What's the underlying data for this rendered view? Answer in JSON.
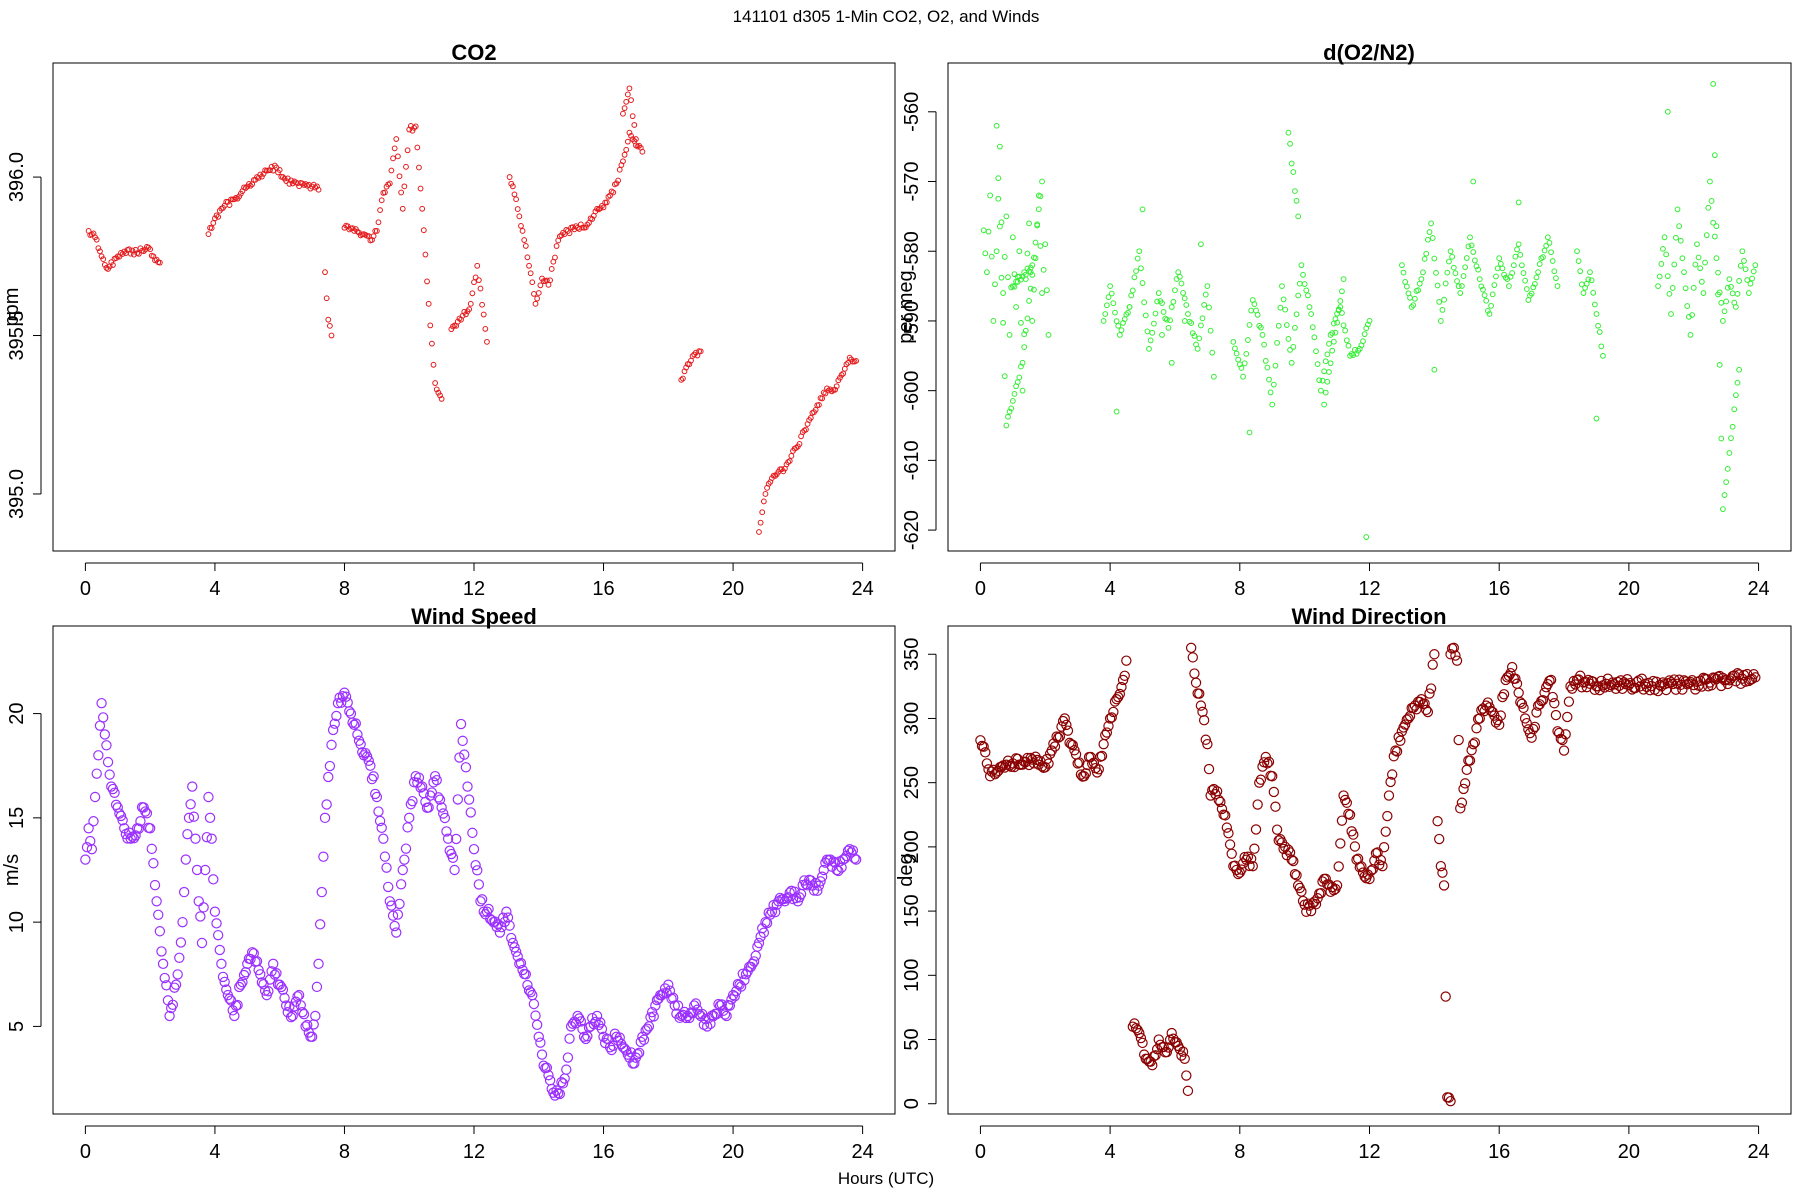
{
  "figure": {
    "title": "141101   d305   1-Min CO2, O2, and Winds",
    "xlabel": "Hours (UTC)"
  },
  "chart_data": [
    {
      "type": "scatter",
      "title": "CO2",
      "xlabel": "",
      "ylabel": "ppm",
      "xlim": [
        -1,
        25
      ],
      "ylim": [
        394.82,
        396.36
      ],
      "xticks": [
        "0",
        "4",
        "8",
        "12",
        "16",
        "20",
        "24"
      ],
      "yticks": [
        "395.0",
        "395.5",
        "396.0"
      ],
      "color": "#e41a1c",
      "marker_size": "small",
      "series": [
        {
          "x": [
            0.1,
            0.3,
            0.5,
            0.7,
            1.0,
            1.3,
            1.6,
            1.9,
            2.1,
            2.3
          ],
          "y": [
            395.83,
            395.81,
            395.75,
            395.71,
            395.75,
            395.77,
            395.76,
            395.78,
            395.75,
            395.73
          ]
        },
        {
          "x": [
            3.8,
            4.0,
            4.3,
            4.6,
            5.0,
            5.3,
            5.6,
            5.9,
            6.1,
            6.4,
            6.7,
            7.0,
            7.2
          ],
          "y": [
            395.82,
            395.87,
            395.91,
            395.93,
            395.97,
            396.0,
            396.02,
            396.03,
            396.0,
            395.98,
            395.98,
            395.97,
            395.96
          ]
        },
        {
          "x": [
            7.4,
            7.5,
            7.6
          ],
          "y": [
            395.7,
            395.55,
            395.5
          ]
        },
        {
          "x": [
            8.0,
            8.3,
            8.6,
            8.8,
            9.0,
            9.2,
            9.4,
            9.6,
            9.8,
            10.0,
            10.2,
            10.4,
            10.6,
            10.8,
            11.0
          ],
          "y": [
            395.84,
            395.83,
            395.82,
            395.8,
            395.83,
            395.95,
            395.98,
            396.12,
            395.9,
            396.15,
            396.16,
            395.9,
            395.6,
            395.35,
            395.3
          ]
        },
        {
          "x": [
            11.3,
            11.6,
            11.9,
            12.1,
            12.4
          ],
          "y": [
            395.52,
            395.55,
            395.6,
            395.72,
            395.48
          ]
        },
        {
          "x": [
            13.1,
            13.3,
            13.5,
            13.7,
            13.9,
            14.1,
            14.3,
            14.6,
            14.9,
            15.2,
            15.5,
            15.8,
            16.1,
            16.4,
            16.6,
            16.8,
            17.0,
            17.2
          ],
          "y": [
            396.0,
            395.93,
            395.83,
            395.72,
            395.6,
            395.68,
            395.66,
            395.8,
            395.83,
            395.84,
            395.85,
            395.9,
            395.92,
            395.98,
            396.05,
            396.14,
            396.1,
            396.08
          ]
        },
        {
          "x": [
            16.6,
            16.8,
            17.0
          ],
          "y": [
            396.2,
            396.28,
            396.12
          ]
        },
        {
          "x": [
            18.4,
            18.6,
            18.8,
            19.0
          ],
          "y": [
            395.36,
            395.41,
            395.44,
            395.45
          ]
        },
        {
          "x": [
            20.8,
            21.0,
            21.2,
            21.4,
            21.6,
            21.8,
            22.0,
            22.2,
            22.4,
            22.6,
            22.8,
            23.0,
            23.2,
            23.4,
            23.6,
            23.8
          ],
          "y": [
            394.88,
            395.0,
            395.05,
            395.07,
            395.08,
            395.12,
            395.15,
            395.2,
            395.24,
            395.28,
            395.32,
            395.33,
            395.34,
            395.38,
            395.43,
            395.42
          ]
        }
      ]
    },
    {
      "type": "scatter",
      "title": "d(O2/N2)",
      "xlabel": "",
      "ylabel": "per meg",
      "xlim": [
        -1,
        25
      ],
      "ylim": [
        -623,
        -553
      ],
      "xticks": [
        "0",
        "4",
        "8",
        "12",
        "16",
        "20",
        "24"
      ],
      "yticks": [
        "-620",
        "-610",
        "-600",
        "-590",
        "-580",
        "-570",
        "-560"
      ],
      "color": "#33ee33",
      "marker_size": "small",
      "series": [
        {
          "x": [
            0.1,
            0.2,
            0.3,
            0.4,
            0.5,
            0.6,
            0.7,
            0.8,
            0.9,
            1.0,
            1.1,
            1.2,
            1.3,
            1.4,
            1.5,
            1.6,
            1.7,
            1.8,
            1.9,
            2.0,
            2.1,
            0.5,
            0.8,
            1.3,
            1.9,
            1.0,
            1.6
          ],
          "y": [
            -577,
            -583,
            -572,
            -590,
            -580,
            -565,
            -586,
            -575,
            -592,
            -578,
            -588,
            -580,
            -600,
            -584,
            -576,
            -590,
            -581,
            -572,
            -586,
            -579,
            -592,
            -562,
            -605,
            -596,
            -570,
            -585,
            -582
          ]
        },
        {
          "x": [
            3.8,
            4.0,
            4.3,
            4.6,
            4.9,
            5.2,
            5.5,
            5.8,
            6.1,
            6.4,
            6.7,
            7.0,
            7.2,
            4.2,
            5.0,
            5.9,
            6.8,
            4.6,
            5.6,
            6.3
          ],
          "y": [
            -590,
            -585,
            -592,
            -588,
            -580,
            -594,
            -586,
            -591,
            -583,
            -589,
            -594,
            -585,
            -598,
            -603,
            -574,
            -596,
            -579,
            -588,
            -592,
            -590
          ]
        },
        {
          "x": [
            7.8,
            8.1,
            8.4,
            8.7,
            9.0,
            9.3,
            9.6,
            9.9,
            10.2,
            10.5,
            10.8,
            11.1,
            11.4,
            11.7,
            12.0,
            8.3,
            9.5,
            9.8,
            10.6,
            11.2,
            11.9
          ],
          "y": [
            -593,
            -598,
            -587,
            -592,
            -602,
            -585,
            -596,
            -582,
            -589,
            -600,
            -592,
            -588,
            -595,
            -594,
            -590,
            -606,
            -563,
            -575,
            -602,
            -584,
            -621
          ]
        },
        {
          "x": [
            13.0,
            13.3,
            13.6,
            13.9,
            14.2,
            14.5,
            14.8,
            15.1,
            15.4,
            15.7,
            16.0,
            16.3,
            16.6,
            16.9,
            17.2,
            17.5,
            17.8,
            15.2,
            16.6,
            14.0
          ],
          "y": [
            -582,
            -588,
            -584,
            -576,
            -590,
            -580,
            -586,
            -578,
            -584,
            -589,
            -581,
            -585,
            -579,
            -587,
            -583,
            -578,
            -585,
            -570,
            -573,
            -597
          ]
        },
        {
          "x": [
            18.4,
            18.6,
            18.8,
            19.0,
            19.2,
            19.0
          ],
          "y": [
            -580,
            -586,
            -583,
            -589,
            -595,
            -604
          ]
        },
        {
          "x": [
            20.9,
            21.1,
            21.3,
            21.5,
            21.7,
            21.9,
            22.1,
            22.3,
            22.5,
            22.7,
            22.9,
            23.1,
            23.3,
            23.5,
            23.7,
            23.9,
            21.2,
            22.6,
            22.9,
            23.4
          ],
          "y": [
            -585,
            -578,
            -589,
            -574,
            -583,
            -592,
            -579,
            -586,
            -570,
            -581,
            -590,
            -584,
            -588,
            -580,
            -586,
            -582,
            -560,
            -556,
            -617,
            -597
          ]
        }
      ]
    },
    {
      "type": "scatter",
      "title": "Wind Speed",
      "xlabel": "",
      "ylabel": "m/s",
      "xlim": [
        -1,
        25
      ],
      "ylim": [
        0.8,
        24.2
      ],
      "xticks": [
        "0",
        "4",
        "8",
        "12",
        "16",
        "20",
        "24"
      ],
      "yticks": [
        "5",
        "10",
        "15",
        "20"
      ],
      "color": "#9b30ff",
      "marker_size": "large",
      "series": [
        {
          "x": [
            0.0,
            0.1,
            0.2,
            0.3,
            0.4,
            0.5,
            0.6,
            0.8,
            1.0,
            1.2,
            1.4,
            1.6,
            1.8,
            2.0,
            2.2,
            2.4,
            2.6,
            2.8,
            3.0,
            3.1,
            3.2,
            3.3,
            3.4,
            3.5,
            3.6,
            3.7,
            3.8,
            3.9,
            4.0,
            4.2,
            4.4,
            4.6,
            4.8,
            5.0,
            5.2,
            5.4,
            5.6,
            5.8,
            6.0,
            6.2,
            6.4,
            6.6,
            6.8,
            7.0,
            7.1,
            7.2,
            7.4,
            7.6,
            7.8,
            8.0,
            8.2,
            8.4,
            8.6,
            8.8,
            9.0,
            9.2,
            9.4,
            9.6,
            9.8,
            10.0,
            10.2,
            10.4,
            10.6,
            10.8,
            11.0,
            11.2,
            11.4,
            11.6,
            11.8,
            12.0,
            12.2,
            12.4,
            12.6,
            12.8,
            13.0,
            13.2,
            13.4,
            13.6,
            13.8,
            14.0,
            14.2,
            14.4,
            14.6,
            14.8,
            15.0,
            15.2,
            15.4,
            15.6,
            15.8,
            16.0,
            16.2,
            16.4,
            16.6,
            16.8,
            17.0,
            17.2,
            17.4,
            17.6,
            17.8,
            18.0,
            18.2,
            18.4,
            18.6,
            18.8,
            19.0,
            19.2,
            19.4,
            19.6,
            19.8,
            20.0,
            20.2,
            20.4,
            20.6,
            20.8,
            21.0,
            21.2,
            21.4,
            21.6,
            21.8,
            22.0,
            22.2,
            22.4,
            22.6,
            22.8,
            23.0,
            23.2,
            23.4,
            23.6,
            23.8
          ],
          "y": [
            13.0,
            14.5,
            13.5,
            16.0,
            18.0,
            20.5,
            19.0,
            16.5,
            15.5,
            14.5,
            14.0,
            14.5,
            15.5,
            14.5,
            11.0,
            8.0,
            5.5,
            7.0,
            10.0,
            13.0,
            15.0,
            16.5,
            14.0,
            11.0,
            9.0,
            12.5,
            16.0,
            14.0,
            10.5,
            8.0,
            6.5,
            5.5,
            7.0,
            8.0,
            8.5,
            7.5,
            6.5,
            8.0,
            7.0,
            6.0,
            5.5,
            6.5,
            5.0,
            4.5,
            5.5,
            8.0,
            15.0,
            18.5,
            20.5,
            21.0,
            20.0,
            19.0,
            18.0,
            17.5,
            16.0,
            14.0,
            11.0,
            9.5,
            12.5,
            15.0,
            17.0,
            16.5,
            15.5,
            17.0,
            15.5,
            14.0,
            12.5,
            19.5,
            16.5,
            13.5,
            11.0,
            10.5,
            10.0,
            9.5,
            10.5,
            9.0,
            8.0,
            7.5,
            6.5,
            4.5,
            3.0,
            2.0,
            1.8,
            2.5,
            5.0,
            5.5,
            4.5,
            5.0,
            5.5,
            4.5,
            4.0,
            4.5,
            4.0,
            3.5,
            3.5,
            4.5,
            5.0,
            6.0,
            6.5,
            7.0,
            6.0,
            5.5,
            5.5,
            6.0,
            5.5,
            5.0,
            5.5,
            6.0,
            5.5,
            6.5,
            7.0,
            7.5,
            8.0,
            9.0,
            10.0,
            10.5,
            11.0,
            11.0,
            11.5,
            11.0,
            12.0,
            12.0,
            11.5,
            12.5,
            13.0,
            12.5,
            13.0,
            13.5,
            13.0
          ]
        }
      ]
    },
    {
      "type": "scatter",
      "title": "Wind Direction",
      "xlabel": "",
      "ylabel": "deg",
      "xlim": [
        -1,
        25
      ],
      "ylim": [
        -8,
        372
      ],
      "xticks": [
        "0",
        "4",
        "8",
        "12",
        "16",
        "20",
        "24"
      ],
      "yticks": [
        "0",
        "50",
        "100",
        "150",
        "200",
        "250",
        "300",
        "350"
      ],
      "color": "#8b0000",
      "marker_size": "large",
      "series": [
        {
          "x": [
            0.0,
            0.1,
            0.2,
            0.3,
            0.4,
            0.6,
            0.8,
            1.0,
            1.2,
            1.4,
            1.6,
            1.8,
            2.0,
            2.2,
            2.4,
            2.6,
            2.8,
            3.0,
            3.2,
            3.4,
            3.6,
            3.8,
            4.0,
            4.2,
            4.4,
            4.5
          ],
          "y": [
            283,
            278,
            265,
            255,
            260,
            262,
            264,
            265,
            264,
            266,
            268,
            264,
            262,
            275,
            285,
            300,
            280,
            265,
            255,
            270,
            258,
            280,
            300,
            315,
            330,
            345
          ]
        },
        {
          "x": [
            4.7,
            4.9,
            5.1,
            5.3,
            5.5,
            5.7,
            5.9,
            6.1,
            6.3,
            6.4
          ],
          "y": [
            60,
            55,
            35,
            30,
            50,
            40,
            55,
            45,
            35,
            10
          ]
        },
        {
          "x": [
            6.5,
            6.6,
            6.8,
            7.0,
            7.1,
            7.2,
            7.4,
            7.6,
            7.8,
            8.0,
            8.2,
            8.4,
            8.6,
            8.8,
            9.0,
            9.2,
            9.4,
            9.6,
            9.8,
            10.0,
            10.2,
            10.4,
            10.6,
            10.8,
            11.0,
            11.2,
            11.4,
            11.6,
            11.8,
            12.0,
            12.2,
            12.4,
            12.6,
            12.8,
            13.0,
            13.2,
            13.4,
            13.6,
            13.8,
            14.0
          ],
          "y": [
            355,
            335,
            310,
            280,
            240,
            245,
            235,
            215,
            185,
            180,
            190,
            185,
            250,
            270,
            255,
            205,
            200,
            190,
            170,
            155,
            150,
            160,
            175,
            165,
            170,
            240,
            225,
            190,
            180,
            175,
            195,
            185,
            240,
            275,
            290,
            300,
            310,
            315,
            305,
            350
          ]
        },
        {
          "x": [
            14.1,
            14.2,
            14.3,
            14.4,
            14.5
          ],
          "y": [
            220,
            185,
            170,
            5,
            2
          ]
        },
        {
          "x": [
            14.5,
            14.6,
            14.7,
            14.8,
            15.0,
            15.2,
            15.4,
            15.6,
            15.8,
            16.0,
            16.2,
            16.4,
            16.6,
            16.8,
            17.0,
            17.2,
            17.4,
            17.6,
            17.8,
            18.0,
            18.2,
            18.4,
            18.6,
            18.8,
            19.0,
            19.5,
            20.0,
            20.5,
            21.0,
            21.5,
            22.0,
            22.5,
            23.0,
            23.5,
            23.9
          ],
          "y": [
            350,
            355,
            345,
            230,
            260,
            280,
            300,
            310,
            305,
            295,
            330,
            340,
            320,
            300,
            285,
            310,
            320,
            330,
            290,
            275,
            325,
            330,
            328,
            327,
            325,
            328,
            326,
            327,
            325,
            327,
            326,
            328,
            330,
            331,
            332
          ]
        }
      ]
    }
  ]
}
